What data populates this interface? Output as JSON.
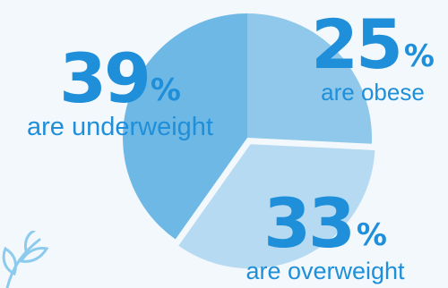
{
  "chart_data": {
    "type": "pie",
    "slices": [
      {
        "value": 25,
        "percent_label": "%",
        "caption": "are obese",
        "color": "#8fc8ea"
      },
      {
        "value": 33,
        "percent_label": "%",
        "caption": "are overweight",
        "color": "#b5daf2"
      },
      {
        "value": 39,
        "percent_label": "%",
        "caption": "are underweight",
        "color": "#6eb8e6"
      }
    ],
    "exploded_slice": "are overweight",
    "background": "#f3f8fc",
    "accent": "#1f8fd9"
  },
  "decoration": {
    "leaf_color": "#8ccbee"
  }
}
